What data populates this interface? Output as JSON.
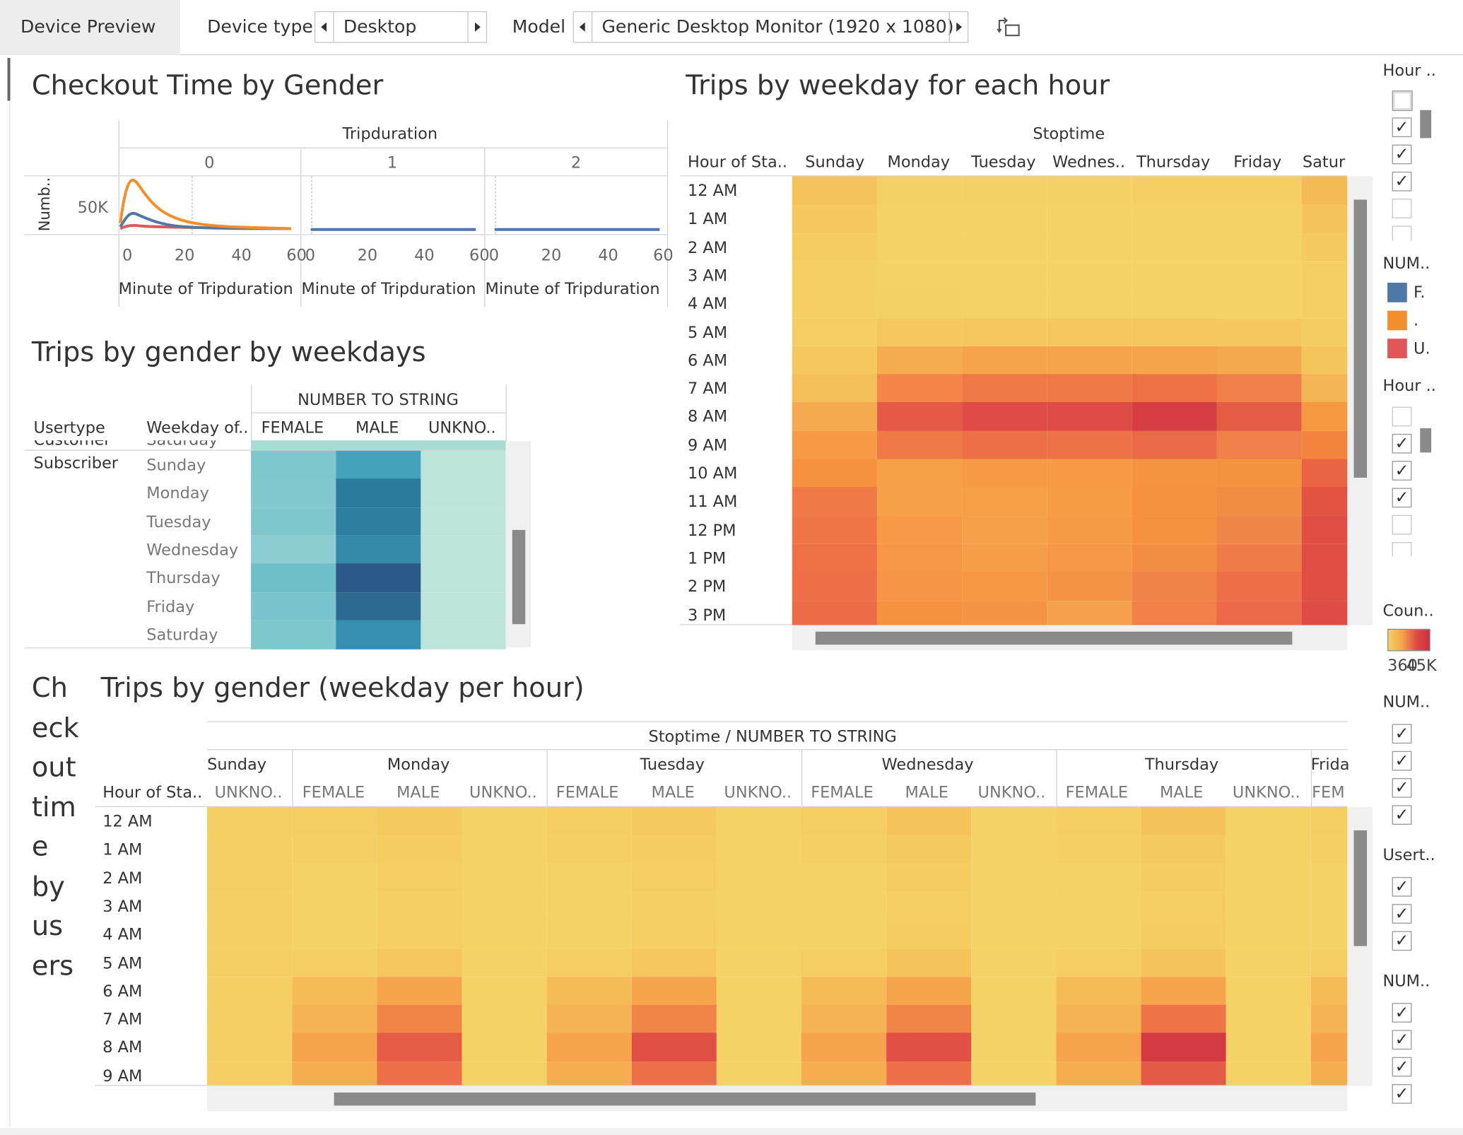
{
  "toolbar": {
    "device_preview_label": "Device Preview",
    "device_type_label": "Device type",
    "device_type_value": "Desktop",
    "model_label": "Model",
    "model_value": "Generic Desktop Monitor (1920 x 1080)"
  },
  "checkout": {
    "title": "Checkout Time by Gender",
    "header": "Tripduration",
    "panels": [
      "0",
      "1",
      "2"
    ],
    "ylabel": "Numb..",
    "ytick": "50K",
    "xticks": [
      "0",
      "20",
      "40",
      "60"
    ],
    "xlabel": "Minute of Tripduration"
  },
  "gender_weekdays": {
    "title": "Trips by gender by weekdays",
    "header": "NUMBER TO STRING",
    "col_usertype": "Usertype",
    "col_weekday": "Weekday of..",
    "cols": [
      "FEMALE",
      "MALE",
      "UNKNO.."
    ],
    "clipped_rows": [
      "Customer",
      "Saturday"
    ],
    "usertype": "Subscriber",
    "days": [
      "Sunday",
      "Monday",
      "Tuesday",
      "Wednesday",
      "Thursday",
      "Friday",
      "Saturday"
    ],
    "colors": {
      "female": [
        "#7ec7cd",
        "#81c8ce",
        "#7ec7cd",
        "#8ccdd2",
        "#6ebfc8",
        "#79c4cc",
        "#7ec7cd"
      ],
      "male": [
        "#44a2ba",
        "#2d7b9c",
        "#2f7e9f",
        "#3489a9",
        "#2c5a88",
        "#2d6a92",
        "#378fb0"
      ],
      "unknown": [
        "#bde4d9",
        "#bde4d9",
        "#bde4d9",
        "#bde4d9",
        "#bde4d9",
        "#bde4d9",
        "#bde4d9"
      ]
    }
  },
  "weekday_hour": {
    "title": "Trips by weekday for each hour",
    "header": "Stoptime",
    "corner": "Hour of Sta..",
    "days": [
      "Sunday",
      "Monday",
      "Tuesday",
      "Wednes..",
      "Thursday",
      "Friday",
      "Satur"
    ],
    "hours": [
      "12 AM",
      "1 AM",
      "2 AM",
      "3 AM",
      "4 AM",
      "5 AM",
      "6 AM",
      "7 AM",
      "8 AM",
      "9 AM",
      "10 AM",
      "11 AM",
      "12 PM",
      "1 PM",
      "2 PM",
      "3 PM"
    ],
    "colors": [
      [
        "#f4c45b",
        "#f4d164",
        "#f4d164",
        "#f4d164",
        "#f4d064",
        "#f4cf63",
        "#f4ba56"
      ],
      [
        "#f4c85d",
        "#f4d266",
        "#f4d266",
        "#f4d266",
        "#f4d266",
        "#f4d266",
        "#f4c45b"
      ],
      [
        "#f4cc60",
        "#f4d266",
        "#f4d266",
        "#f4d266",
        "#f4d266",
        "#f4d266",
        "#f4ca5f"
      ],
      [
        "#f4cf63",
        "#f4d266",
        "#f4d266",
        "#f4d266",
        "#f4d266",
        "#f4d266",
        "#f4cf62"
      ],
      [
        "#f4d064",
        "#f4d164",
        "#f4d266",
        "#f4d266",
        "#f4d266",
        "#f4d266",
        "#f4d064"
      ],
      [
        "#f4ce62",
        "#f4c75c",
        "#f4c75c",
        "#f4c75c",
        "#f4c75c",
        "#f4c85d",
        "#f4cd61"
      ],
      [
        "#f4c85d",
        "#f5ac50",
        "#f5a44c",
        "#f5a44c",
        "#f5a44c",
        "#f5a94f",
        "#f4c55c"
      ],
      [
        "#f4be58",
        "#f28547",
        "#ef7847",
        "#ef7847",
        "#ee7046",
        "#f0804a",
        "#f4b556"
      ],
      [
        "#f5aa50",
        "#e45a46",
        "#df4c45",
        "#df4c45",
        "#d63e44",
        "#e55c45",
        "#f5983f"
      ],
      [
        "#f69a45",
        "#ef7847",
        "#ed6f47",
        "#ee7247",
        "#ea6a47",
        "#f0804a",
        "#f3843f"
      ],
      [
        "#f5913f",
        "#f6a048",
        "#f69a45",
        "#f69a45",
        "#f49441",
        "#f39340",
        "#e96443"
      ],
      [
        "#f07a45",
        "#f6a04a",
        "#f69f47",
        "#f69c45",
        "#f5913f",
        "#f18c43",
        "#e35342"
      ],
      [
        "#ef7547",
        "#f69a47",
        "#f6a04a",
        "#f59a45",
        "#f5913f",
        "#f08548",
        "#e04d43"
      ],
      [
        "#ee7047",
        "#f69745",
        "#f69e47",
        "#f59845",
        "#f28d43",
        "#ef7b47",
        "#e04d43"
      ],
      [
        "#ee6e47",
        "#f69545",
        "#f59843",
        "#f39343",
        "#f08448",
        "#ee6e47",
        "#e04d43"
      ],
      [
        "#ec6c47",
        "#f5913f",
        "#f39343",
        "#f5a04a",
        "#f08047",
        "#ec6a47",
        "#df4c45"
      ]
    ]
  },
  "side_label": [
    "Ch",
    "eck",
    "out",
    "tim",
    "e",
    "by",
    "us",
    "ers"
  ],
  "gender_hour": {
    "title": "Trips by gender (weekday per hour)",
    "header": "Stoptime / NUMBER TO STRING",
    "corner": "Hour of Sta..",
    "days": [
      "Sunday",
      "Monday",
      "Tuesday",
      "Wednesday",
      "Thursday",
      "Frida"
    ],
    "subcols": [
      "UNKNO..",
      "FEMALE",
      "MALE",
      "UNKNO..",
      "FEMALE",
      "MALE",
      "UNKNO..",
      "FEMALE",
      "MALE",
      "UNKNO..",
      "FEMALE",
      "MALE",
      "UNKNO..",
      "FEM"
    ],
    "hours": [
      "12 AM",
      "1 AM",
      "2 AM",
      "3 AM",
      "4 AM",
      "5 AM",
      "6 AM",
      "7 AM",
      "8 AM",
      "9 AM"
    ],
    "colors": [
      [
        "#f4d064",
        "#f4ce62",
        "#f4c95e",
        "#f4d266",
        "#f4ce62",
        "#f4c95e",
        "#f4d266",
        "#f4ce62",
        "#f4c45b",
        "#f4d266",
        "#f4ce62",
        "#f4c25a",
        "#f4d266",
        "#f4ce62"
      ],
      [
        "#f4d064",
        "#f4d064",
        "#f4cc60",
        "#f4d266",
        "#f4d064",
        "#f4cc60",
        "#f4d266",
        "#f4d064",
        "#f4c95e",
        "#f4d266",
        "#f4d064",
        "#f4c95e",
        "#f4d266",
        "#f4d064"
      ],
      [
        "#f4d064",
        "#f4d266",
        "#f4ce62",
        "#f4d266",
        "#f4d266",
        "#f4ce62",
        "#f4d266",
        "#f4d266",
        "#f4cc60",
        "#f4d266",
        "#f4d266",
        "#f4cc60",
        "#f4d266",
        "#f4d266"
      ],
      [
        "#f4d064",
        "#f4d266",
        "#f4d064",
        "#f4d266",
        "#f4d266",
        "#f4d064",
        "#f4d266",
        "#f4d266",
        "#f4ce62",
        "#f4d266",
        "#f4d266",
        "#f4ce62",
        "#f4d266",
        "#f4d266"
      ],
      [
        "#f4d064",
        "#f4d266",
        "#f4ce62",
        "#f4d266",
        "#f4d266",
        "#f4ce62",
        "#f4d266",
        "#f4d266",
        "#f4cc60",
        "#f4d266",
        "#f4d266",
        "#f4cc60",
        "#f4d266",
        "#f4d266"
      ],
      [
        "#f4d064",
        "#f4ce62",
        "#f4c65c",
        "#f4d266",
        "#f4ce62",
        "#f4c65c",
        "#f4d266",
        "#f4ce62",
        "#f4c45b",
        "#f4d266",
        "#f4ce62",
        "#f4c45b",
        "#f4d266",
        "#f4ce62"
      ],
      [
        "#f4d064",
        "#f5bb57",
        "#f5a44c",
        "#f4d266",
        "#f5bb57",
        "#f5a44c",
        "#f4d266",
        "#f5bb57",
        "#f5a44c",
        "#f4d266",
        "#f5bb57",
        "#f5a44c",
        "#f4d266",
        "#f5bb57"
      ],
      [
        "#f4d064",
        "#f5b355",
        "#f18547",
        "#f4d266",
        "#f5b355",
        "#f18547",
        "#f4d266",
        "#f5b355",
        "#f18547",
        "#f4d266",
        "#f5b355",
        "#ee7346",
        "#f4d266",
        "#f5b355"
      ],
      [
        "#f4cf63",
        "#f5a44c",
        "#e55c45",
        "#f4d266",
        "#f5a44c",
        "#e05044",
        "#f4d266",
        "#f5a44c",
        "#e05044",
        "#f4d266",
        "#f5a44c",
        "#d33a44",
        "#f4d266",
        "#f5a44c"
      ],
      [
        "#f4ce62",
        "#f5ad50",
        "#ec6f47",
        "#f4d266",
        "#f5ad50",
        "#ec6f47",
        "#f4d266",
        "#f5ad50",
        "#ec6f47",
        "#f4d266",
        "#f5ad50",
        "#e35a46",
        "#f4d266",
        "#f5ad50"
      ]
    ]
  },
  "right_panel": {
    "hour_label_1": "Hour ..",
    "num_label_1": "NUM..",
    "num_legend": [
      {
        "label": "F.",
        "color": "#4e79a7"
      },
      {
        "label": ".",
        "color": "#f28e2b"
      },
      {
        "label": "U.",
        "color": "#e15759"
      }
    ],
    "hour_label_2": "Hour ..",
    "count_label": "Coun..",
    "count_min": "360",
    "count_max": "45K",
    "num_label_2": "NUM..",
    "usertype_label": "Usert..",
    "num_label_3": "NUM.."
  }
}
